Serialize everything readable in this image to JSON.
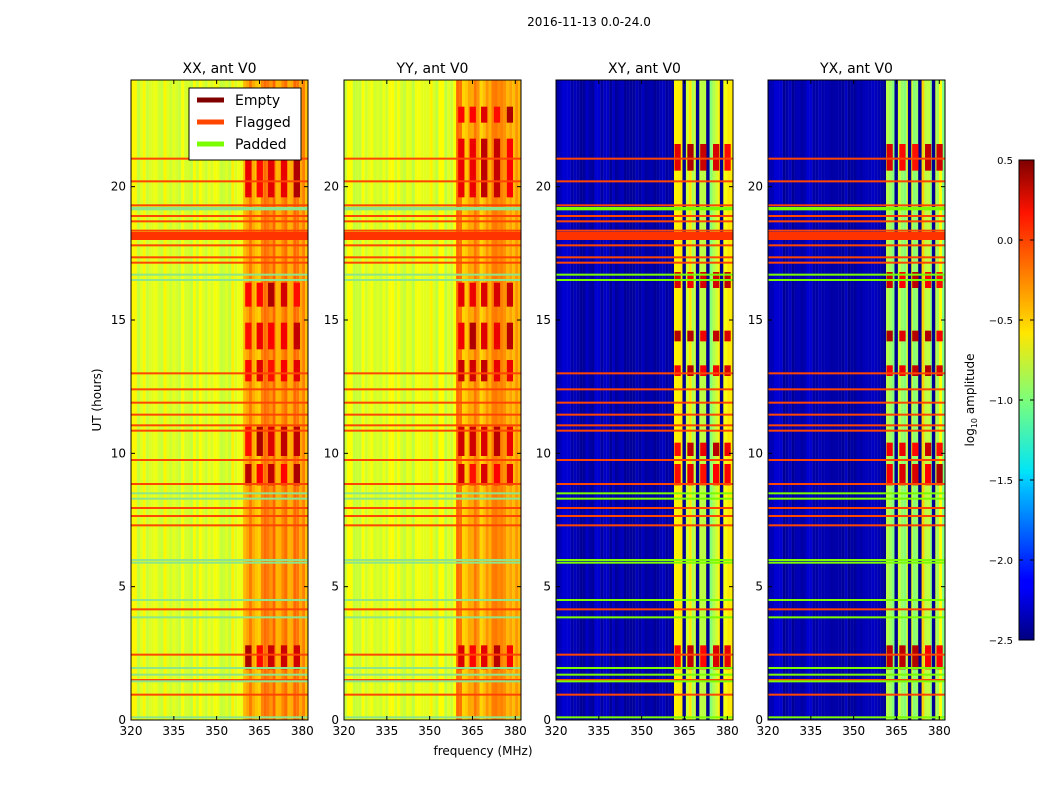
{
  "chart_data": {
    "type": "heatmap",
    "title": "2016-11-13 0.0-24.0",
    "xlabel": "frequency (MHz)",
    "ylabel": "UT (hours)",
    "xlim": [
      320,
      382
    ],
    "ylim": [
      0,
      24
    ],
    "xticks": [
      "320",
      "335",
      "350",
      "365",
      "380"
    ],
    "yticks": [
      "0",
      "5",
      "10",
      "15",
      "20"
    ],
    "panels": [
      {
        "title": "XX, ant V0",
        "kind": "auto"
      },
      {
        "title": "YY, ant V0",
        "kind": "auto"
      },
      {
        "title": "XY, ant V0",
        "kind": "cross"
      },
      {
        "title": "YX, ant V0",
        "kind": "cross"
      }
    ],
    "legend": {
      "position": "top-right of first panel",
      "entries": [
        {
          "label": "Empty",
          "color": "#800000"
        },
        {
          "label": "Flagged",
          "color": "#ff4500"
        },
        {
          "label": "Padded",
          "color": "#7cfc00"
        }
      ]
    },
    "colorbar": {
      "label_main": "log",
      "label_sub": "10",
      "label_rest": " amplitude",
      "range": [
        -2.5,
        0.5
      ],
      "ticks": [
        "0.5",
        "0.0",
        "−0.5",
        "−1.0",
        "−1.5",
        "−2.0",
        "−2.5"
      ],
      "tick_values": [
        0.5,
        0.0,
        -0.5,
        -1.0,
        -1.5,
        -2.0,
        -2.5
      ]
    },
    "flagged_hours": [
      0.95,
      1.5,
      2.45,
      4.15,
      7.3,
      7.65,
      7.95,
      8.85,
      9.75,
      10.85,
      11.05,
      11.45,
      11.9,
      12.4,
      13.0,
      17.15,
      17.35,
      17.8,
      18.1,
      18.35,
      18.7,
      18.9,
      19.3,
      20.2,
      21.05
    ],
    "padded_hours": [
      0.1,
      1.45,
      1.7,
      1.95,
      3.85,
      4.5,
      5.9,
      6.0,
      8.3,
      8.5,
      16.5,
      16.7,
      19.15,
      19.2
    ]
  }
}
